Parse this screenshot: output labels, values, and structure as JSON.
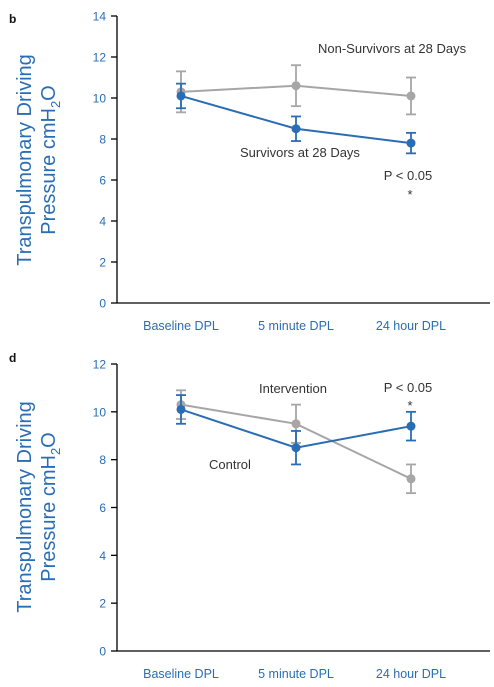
{
  "colors": {
    "axis_text": "#2a6db5",
    "series_gray": "#a6a6a6",
    "series_blue": "#2a6db5"
  },
  "chart_data": [
    {
      "panel": "b",
      "type": "line",
      "categories": [
        "Baseline DPL",
        "5 minute DPL",
        "24 hour DPL"
      ],
      "ylabel_line1": "Transpulmonary Driving",
      "ylabel_line2": "Pressure cmH",
      "ylabel_sub": "2",
      "ylabel_suffix": "O",
      "ylim": [
        0,
        14
      ],
      "yticks": [
        0,
        2,
        4,
        6,
        8,
        10,
        12,
        14
      ],
      "grid": false,
      "series": [
        {
          "name": "Non-Survivors at 28 Days",
          "color": "#a6a6a6",
          "values": [
            10.3,
            10.6,
            10.1
          ],
          "err": [
            1.0,
            1.0,
            0.9
          ]
        },
        {
          "name": "Survivors at 28 Days",
          "color": "#2a6db5",
          "values": [
            10.1,
            8.5,
            7.8
          ],
          "err": [
            0.6,
            0.6,
            0.5
          ]
        }
      ],
      "annotations": {
        "pvalue": "P < 0.05",
        "asterisk": "*"
      }
    },
    {
      "panel": "d",
      "type": "line",
      "categories": [
        "Baseline DPL",
        "5 minute DPL",
        "24 hour DPL"
      ],
      "ylabel_line1": "Transpulmonary Driving",
      "ylabel_line2": "Pressure cmH",
      "ylabel_sub": "2",
      "ylabel_suffix": "O",
      "ylim": [
        0,
        12
      ],
      "yticks": [
        0,
        2,
        4,
        6,
        8,
        10,
        12
      ],
      "grid": false,
      "series": [
        {
          "name": "Intervention",
          "color": "#a6a6a6",
          "values": [
            10.3,
            9.5,
            7.2
          ],
          "err": [
            0.6,
            0.8,
            0.6
          ]
        },
        {
          "name": "Control",
          "color": "#2a6db5",
          "values": [
            10.1,
            8.5,
            9.4
          ],
          "err": [
            0.6,
            0.7,
            0.6
          ]
        }
      ],
      "annotations": {
        "pvalue": "P < 0.05",
        "asterisk": "*"
      }
    }
  ]
}
